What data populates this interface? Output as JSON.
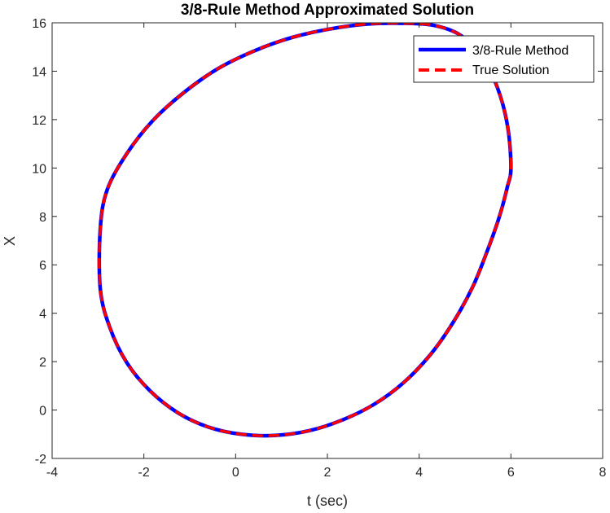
{
  "chart_data": {
    "type": "line",
    "title": "3/8-Rule Method Approximated Solution",
    "xlabel": "t (sec)",
    "ylabel": "X",
    "xlim": [
      -4,
      8
    ],
    "ylim": [
      -2,
      16
    ],
    "xticks": [
      "-4",
      "-2",
      "0",
      "2",
      "4",
      "6",
      "8"
    ],
    "yticks": [
      "-2",
      "0",
      "2",
      "4",
      "6",
      "8",
      "10",
      "12",
      "14",
      "16"
    ],
    "grid": false,
    "legend_position": "top-right",
    "series": [
      {
        "name": "3/8-Rule Method",
        "color": "#0000ff",
        "style": "solid",
        "x": [
          6.0,
          5.93,
          5.71,
          5.36,
          4.89,
          4.3,
          3.62,
          2.87,
          2.07,
          1.24,
          0.42,
          -0.39,
          -1.14,
          -1.81,
          -2.37,
          -2.8,
          -2.95,
          -2.95,
          -2.74,
          -2.37,
          -1.87,
          -1.27,
          -0.6,
          0.12,
          0.86,
          1.61,
          2.34,
          3.03,
          3.67,
          4.25,
          4.75,
          5.17,
          5.49,
          5.75,
          5.92,
          6.0
        ],
        "y": [
          10.0,
          11.7,
          13.3,
          14.6,
          15.5,
          15.9,
          15.98,
          15.95,
          15.75,
          15.4,
          14.85,
          14.1,
          13.1,
          11.95,
          10.6,
          9.1,
          7.5,
          5.0,
          3.4,
          1.95,
          0.8,
          -0.1,
          -0.7,
          -1.0,
          -1.05,
          -0.85,
          -0.4,
          0.25,
          1.15,
          2.3,
          3.65,
          5.1,
          6.6,
          8.0,
          9.2,
          10.0
        ]
      },
      {
        "name": "True Solution",
        "color": "#ff0000",
        "style": "dashed",
        "x": [
          6.0,
          5.93,
          5.71,
          5.36,
          4.89,
          4.3,
          3.62,
          2.87,
          2.07,
          1.24,
          0.42,
          -0.39,
          -1.14,
          -1.81,
          -2.37,
          -2.8,
          -2.95,
          -2.95,
          -2.74,
          -2.37,
          -1.87,
          -1.27,
          -0.6,
          0.12,
          0.86,
          1.61,
          2.34,
          3.03,
          3.67,
          4.25,
          4.75,
          5.17,
          5.49,
          5.75,
          5.92,
          6.0
        ],
        "y": [
          10.0,
          11.7,
          13.3,
          14.6,
          15.5,
          15.9,
          15.98,
          15.95,
          15.75,
          15.4,
          14.85,
          14.1,
          13.1,
          11.95,
          10.6,
          9.1,
          7.5,
          5.0,
          3.4,
          1.95,
          0.8,
          -0.1,
          -0.7,
          -1.0,
          -1.05,
          -0.85,
          -0.4,
          0.25,
          1.15,
          2.3,
          3.65,
          5.1,
          6.6,
          8.0,
          9.2,
          10.0
        ]
      }
    ]
  }
}
